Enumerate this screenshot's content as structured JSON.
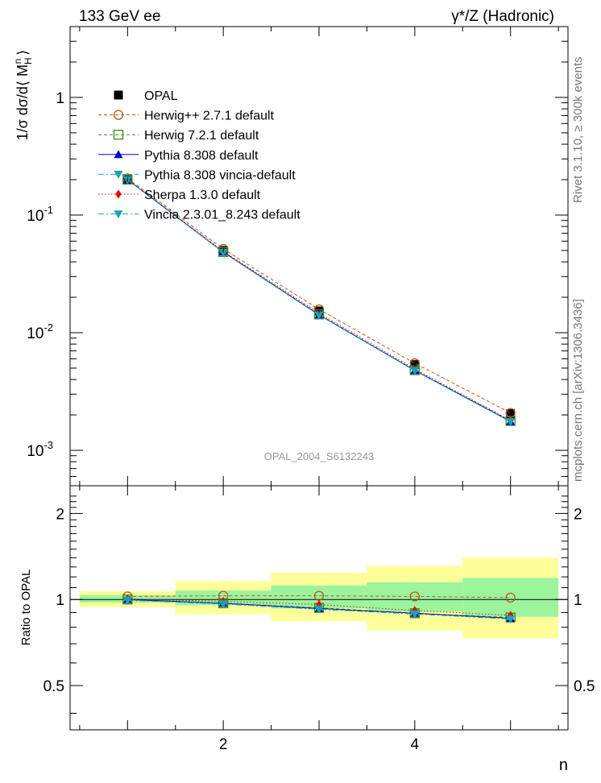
{
  "header": {
    "left": "133 GeV ee",
    "right": "γ*/Z (Hadronic)"
  },
  "side_labels": {
    "rivet": "Rivet 3.1.10, ≥ 300k events",
    "mcplots": "mcplots.cern.ch [arXiv:1306.3436]"
  },
  "watermark": "OPAL_2004_S6132243",
  "chart_data": [
    {
      "type": "line",
      "panel": "main",
      "title": "133 GeV ee  γ*/Z (Hadronic)",
      "xlabel": "n",
      "ylabel": "1/σ dσ/d⟨ M_H^n ⟩",
      "yscale": "log",
      "xlim": [
        0.4,
        5.6
      ],
      "ylim": [
        0.0005,
        4.0
      ],
      "ytick_values": [
        0.001,
        0.01,
        0.1,
        1
      ],
      "ytick_labels": [
        "10^-3",
        "10^-2",
        "10^-1",
        "1"
      ],
      "x": [
        1,
        2,
        3,
        4,
        5
      ],
      "series": [
        {
          "name": "OPAL",
          "color": "#000000",
          "marker": "square-filled",
          "style": "none",
          "values": [
            0.2,
            0.05,
            0.0153,
            0.00535,
            0.00205
          ]
        },
        {
          "name": "Herwig++ 2.7.1 default",
          "color": "#b8561a",
          "marker": "circle-open",
          "style": "dash",
          "values": [
            0.205,
            0.0515,
            0.0158,
            0.0055,
            0.00208
          ]
        },
        {
          "name": "Herwig 7.2.1 default",
          "color": "#3a8a1a",
          "marker": "square-open",
          "style": "dash",
          "values": [
            0.2,
            0.0485,
            0.0143,
            0.0048,
            0.00178
          ]
        },
        {
          "name": "Pythia 8.308 default",
          "color": "#0000cc",
          "marker": "triangle-up",
          "style": "solid",
          "values": [
            0.2,
            0.0485,
            0.0142,
            0.00478,
            0.00176
          ]
        },
        {
          "name": "Pythia 8.308 vincia-default",
          "color": "#1aa3b3",
          "marker": "triangle-down",
          "style": "dashdot",
          "values": [
            0.199,
            0.0482,
            0.0141,
            0.00476,
            0.00175
          ]
        },
        {
          "name": "Sherpa 1.3.0 default",
          "color": "#e01010",
          "marker": "diamond",
          "style": "dot",
          "values": [
            0.201,
            0.0492,
            0.0147,
            0.0049,
            0.0018
          ]
        },
        {
          "name": "Vincia 2.3.01_8.243 default",
          "color": "#1aa3b3",
          "marker": "triangle-down",
          "style": "dashdot",
          "values": [
            0.199,
            0.0482,
            0.0141,
            0.00476,
            0.00175
          ]
        }
      ]
    },
    {
      "type": "line",
      "panel": "ratio",
      "xlabel": "n",
      "ylabel": "Ratio to OPAL",
      "yscale": "log",
      "xlim": [
        0.4,
        5.6
      ],
      "ylim": [
        0.35,
        2.5
      ],
      "ytick_values": [
        0.5,
        1,
        2
      ],
      "ytick_labels": [
        "0.5",
        "1",
        "2"
      ],
      "xtick_values": [
        2,
        4
      ],
      "xtick_labels": [
        "2",
        "4"
      ],
      "x": [
        1,
        2,
        3,
        4,
        5
      ],
      "bands": [
        {
          "x_low": 0.5,
          "x_high": 1.5,
          "stat_low": 0.975,
          "stat_high": 1.035,
          "tot_low": 0.94,
          "tot_high": 1.07
        },
        {
          "x_low": 1.5,
          "x_high": 2.5,
          "stat_low": 0.955,
          "stat_high": 1.075,
          "tot_low": 0.89,
          "tot_high": 1.16
        },
        {
          "x_low": 2.5,
          "x_high": 3.5,
          "stat_low": 0.93,
          "stat_high": 1.12,
          "tot_low": 0.84,
          "tot_high": 1.24
        },
        {
          "x_low": 3.5,
          "x_high": 4.5,
          "stat_low": 0.905,
          "stat_high": 1.15,
          "tot_low": 0.78,
          "tot_high": 1.31
        },
        {
          "x_low": 4.5,
          "x_high": 5.5,
          "stat_low": 0.87,
          "stat_high": 1.19,
          "tot_low": 0.73,
          "tot_high": 1.4
        }
      ],
      "series": [
        {
          "name": "Herwig++ 2.7.1 default",
          "color": "#b8561a",
          "marker": "circle-open",
          "style": "dash",
          "values": [
            1.025,
            1.03,
            1.03,
            1.025,
            1.015
          ]
        },
        {
          "name": "Herwig 7.2.1 default",
          "color": "#3a8a1a",
          "marker": "square-open",
          "style": "dash",
          "values": [
            1.0,
            0.97,
            0.935,
            0.895,
            0.865
          ]
        },
        {
          "name": "Pythia 8.308 default",
          "color": "#0000cc",
          "marker": "triangle-up",
          "style": "solid",
          "values": [
            1.0,
            0.97,
            0.93,
            0.895,
            0.86
          ]
        },
        {
          "name": "Pythia 8.308 vincia-default",
          "color": "#1aa3b3",
          "marker": "triangle-down",
          "style": "dashdot",
          "values": [
            0.995,
            0.965,
            0.925,
            0.89,
            0.855
          ]
        },
        {
          "name": "Sherpa 1.3.0 default",
          "color": "#e01010",
          "marker": "diamond",
          "style": "dot",
          "values": [
            1.005,
            0.985,
            0.96,
            0.915,
            0.88
          ]
        },
        {
          "name": "Vincia 2.3.01_8.243 default",
          "color": "#1aa3b3",
          "marker": "triangle-down",
          "style": "dashdot",
          "values": [
            0.995,
            0.965,
            0.925,
            0.89,
            0.855
          ]
        }
      ]
    }
  ]
}
